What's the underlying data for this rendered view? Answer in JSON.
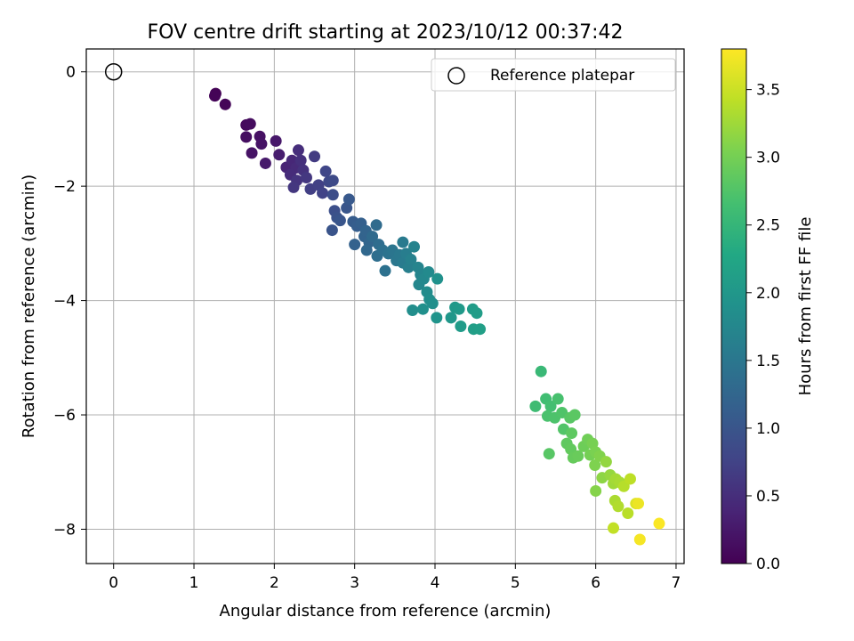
{
  "chart_data": {
    "type": "scatter",
    "title": "FOV centre drift starting at 2023/10/12 00:37:42",
    "xlabel": "Angular distance from reference (arcmin)",
    "ylabel": "Rotation from reference (arcmin)",
    "xlim": [
      -0.34,
      7.1
    ],
    "ylim": [
      -8.6,
      0.4
    ],
    "xticks": [
      "0",
      "1",
      "2",
      "3",
      "4",
      "5",
      "6",
      "7"
    ],
    "yticks": [
      "0",
      "−2",
      "−4",
      "−6",
      "−8"
    ],
    "grid": true,
    "legend": {
      "placement": "top-right",
      "entries": [
        "Reference platepar"
      ]
    },
    "colorbar": {
      "label": "Hours from first FF file",
      "colormap": "viridis",
      "range": [
        0.0,
        3.8
      ],
      "ticks": [
        "0.0",
        "0.5",
        "1.0",
        "1.5",
        "2.0",
        "2.5",
        "3.0",
        "3.5"
      ]
    },
    "reference_point": {
      "x": 0.0,
      "y": 0.0
    },
    "series": [
      {
        "values": [
          {
            "x": 1.27,
            "y": -0.38,
            "t": 0.02
          },
          {
            "x": 1.26,
            "y": -0.42,
            "t": 0.03
          },
          {
            "x": 1.39,
            "y": -0.57,
            "t": 0.05
          },
          {
            "x": 1.65,
            "y": -0.93,
            "t": 0.1
          },
          {
            "x": 1.7,
            "y": -0.91,
            "t": 0.12
          },
          {
            "x": 1.65,
            "y": -1.14,
            "t": 0.14
          },
          {
            "x": 1.82,
            "y": -1.13,
            "t": 0.17
          },
          {
            "x": 1.84,
            "y": -1.26,
            "t": 0.2
          },
          {
            "x": 1.72,
            "y": -1.42,
            "t": 0.19
          },
          {
            "x": 2.02,
            "y": -1.21,
            "t": 0.25
          },
          {
            "x": 1.89,
            "y": -1.6,
            "t": 0.27
          },
          {
            "x": 2.06,
            "y": -1.45,
            "t": 0.3
          },
          {
            "x": 2.15,
            "y": -1.67,
            "t": 0.38
          },
          {
            "x": 2.22,
            "y": -1.55,
            "t": 0.42
          },
          {
            "x": 2.27,
            "y": -1.68,
            "t": 0.46
          },
          {
            "x": 2.3,
            "y": -1.37,
            "t": 0.5
          },
          {
            "x": 2.33,
            "y": -1.55,
            "t": 0.52
          },
          {
            "x": 2.36,
            "y": -1.72,
            "t": 0.55
          },
          {
            "x": 2.2,
            "y": -1.8,
            "t": 0.48
          },
          {
            "x": 2.28,
            "y": -1.9,
            "t": 0.57
          },
          {
            "x": 2.24,
            "y": -2.02,
            "t": 0.6
          },
          {
            "x": 2.4,
            "y": -1.85,
            "t": 0.62
          },
          {
            "x": 2.5,
            "y": -1.48,
            "t": 0.65
          },
          {
            "x": 2.45,
            "y": -2.05,
            "t": 0.7
          },
          {
            "x": 2.55,
            "y": -1.98,
            "t": 0.72
          },
          {
            "x": 2.6,
            "y": -2.12,
            "t": 0.75
          },
          {
            "x": 2.64,
            "y": -1.74,
            "t": 0.8
          },
          {
            "x": 2.68,
            "y": -1.92,
            "t": 0.82
          },
          {
            "x": 2.73,
            "y": -1.9,
            "t": 0.85
          },
          {
            "x": 2.73,
            "y": -2.15,
            "t": 0.88
          },
          {
            "x": 2.75,
            "y": -2.43,
            "t": 0.92
          },
          {
            "x": 2.72,
            "y": -2.77,
            "t": 0.98
          },
          {
            "x": 2.78,
            "y": -2.55,
            "t": 0.95
          },
          {
            "x": 2.82,
            "y": -2.6,
            "t": 1.0
          },
          {
            "x": 2.9,
            "y": -2.38,
            "t": 1.02
          },
          {
            "x": 2.93,
            "y": -2.23,
            "t": 1.05
          },
          {
            "x": 2.98,
            "y": -2.62,
            "t": 1.1
          },
          {
            "x": 3.03,
            "y": -2.7,
            "t": 1.12
          },
          {
            "x": 3.08,
            "y": -2.65,
            "t": 1.15
          },
          {
            "x": 3.0,
            "y": -3.02,
            "t": 1.18
          },
          {
            "x": 3.12,
            "y": -2.88,
            "t": 1.2
          },
          {
            "x": 3.14,
            "y": -2.78,
            "t": 1.22
          },
          {
            "x": 3.18,
            "y": -2.98,
            "t": 1.25
          },
          {
            "x": 3.15,
            "y": -3.12,
            "t": 1.27
          },
          {
            "x": 3.22,
            "y": -2.88,
            "t": 1.3
          },
          {
            "x": 3.27,
            "y": -2.68,
            "t": 1.32
          },
          {
            "x": 3.3,
            "y": -3.02,
            "t": 1.35
          },
          {
            "x": 3.28,
            "y": -3.22,
            "t": 1.37
          },
          {
            "x": 3.35,
            "y": -3.12,
            "t": 1.4
          },
          {
            "x": 3.38,
            "y": -3.48,
            "t": 1.42
          },
          {
            "x": 3.42,
            "y": -3.18,
            "t": 1.45
          },
          {
            "x": 3.47,
            "y": -3.12,
            "t": 1.48
          },
          {
            "x": 3.52,
            "y": -3.3,
            "t": 1.5
          },
          {
            "x": 3.56,
            "y": -3.2,
            "t": 1.52
          },
          {
            "x": 3.6,
            "y": -2.98,
            "t": 1.55
          },
          {
            "x": 3.6,
            "y": -3.34,
            "t": 1.57
          },
          {
            "x": 3.64,
            "y": -3.18,
            "t": 1.6
          },
          {
            "x": 3.67,
            "y": -3.42,
            "t": 1.62
          },
          {
            "x": 3.7,
            "y": -3.28,
            "t": 1.65
          },
          {
            "x": 3.74,
            "y": -3.06,
            "t": 1.68
          },
          {
            "x": 3.79,
            "y": -3.42,
            "t": 1.7
          },
          {
            "x": 3.82,
            "y": -3.55,
            "t": 1.72
          },
          {
            "x": 3.8,
            "y": -3.72,
            "t": 1.75
          },
          {
            "x": 3.86,
            "y": -3.62,
            "t": 1.77
          },
          {
            "x": 3.92,
            "y": -3.5,
            "t": 1.8
          },
          {
            "x": 3.9,
            "y": -3.85,
            "t": 1.82
          },
          {
            "x": 3.93,
            "y": -3.98,
            "t": 1.85
          },
          {
            "x": 3.97,
            "y": -4.05,
            "t": 1.87
          },
          {
            "x": 4.03,
            "y": -3.62,
            "t": 1.9
          },
          {
            "x": 3.72,
            "y": -4.17,
            "t": 1.85
          },
          {
            "x": 3.85,
            "y": -4.15,
            "t": 1.88
          },
          {
            "x": 4.02,
            "y": -4.3,
            "t": 1.95
          },
          {
            "x": 4.2,
            "y": -4.3,
            "t": 2.0
          },
          {
            "x": 4.25,
            "y": -4.12,
            "t": 2.02
          },
          {
            "x": 4.3,
            "y": -4.15,
            "t": 2.04
          },
          {
            "x": 4.32,
            "y": -4.45,
            "t": 2.06
          },
          {
            "x": 4.47,
            "y": -4.15,
            "t": 2.08
          },
          {
            "x": 4.52,
            "y": -4.22,
            "t": 2.1
          },
          {
            "x": 4.48,
            "y": -4.5,
            "t": 2.12
          },
          {
            "x": 4.56,
            "y": -4.5,
            "t": 2.13
          },
          {
            "x": 5.32,
            "y": -5.24,
            "t": 2.55
          },
          {
            "x": 5.25,
            "y": -5.85,
            "t": 2.6
          },
          {
            "x": 5.38,
            "y": -5.72,
            "t": 2.62
          },
          {
            "x": 5.44,
            "y": -5.85,
            "t": 2.65
          },
          {
            "x": 5.53,
            "y": -5.72,
            "t": 2.68
          },
          {
            "x": 5.4,
            "y": -6.02,
            "t": 2.7
          },
          {
            "x": 5.49,
            "y": -6.05,
            "t": 2.72
          },
          {
            "x": 5.58,
            "y": -5.96,
            "t": 2.74
          },
          {
            "x": 5.6,
            "y": -6.25,
            "t": 2.76
          },
          {
            "x": 5.68,
            "y": -6.05,
            "t": 2.8
          },
          {
            "x": 5.74,
            "y": -6.0,
            "t": 2.82
          },
          {
            "x": 5.7,
            "y": -6.32,
            "t": 2.84
          },
          {
            "x": 5.64,
            "y": -6.5,
            "t": 2.86
          },
          {
            "x": 5.69,
            "y": -6.6,
            "t": 2.88
          },
          {
            "x": 5.72,
            "y": -6.75,
            "t": 2.9
          },
          {
            "x": 5.78,
            "y": -6.72,
            "t": 2.92
          },
          {
            "x": 5.42,
            "y": -6.68,
            "t": 2.8
          },
          {
            "x": 5.85,
            "y": -6.55,
            "t": 2.95
          },
          {
            "x": 5.9,
            "y": -6.43,
            "t": 2.97
          },
          {
            "x": 5.93,
            "y": -6.7,
            "t": 3.0
          },
          {
            "x": 5.96,
            "y": -6.5,
            "t": 3.02
          },
          {
            "x": 6.0,
            "y": -6.65,
            "t": 3.04
          },
          {
            "x": 5.99,
            "y": -6.88,
            "t": 3.06
          },
          {
            "x": 6.05,
            "y": -6.72,
            "t": 3.08
          },
          {
            "x": 6.0,
            "y": -7.33,
            "t": 3.1
          },
          {
            "x": 6.08,
            "y": -7.1,
            "t": 3.15
          },
          {
            "x": 6.13,
            "y": -6.82,
            "t": 3.18
          },
          {
            "x": 6.18,
            "y": -7.05,
            "t": 3.2
          },
          {
            "x": 6.22,
            "y": -7.2,
            "t": 3.25
          },
          {
            "x": 6.25,
            "y": -7.12,
            "t": 3.28
          },
          {
            "x": 6.3,
            "y": -7.18,
            "t": 3.3
          },
          {
            "x": 6.24,
            "y": -7.5,
            "t": 3.32
          },
          {
            "x": 6.28,
            "y": -7.6,
            "t": 3.35
          },
          {
            "x": 6.35,
            "y": -7.25,
            "t": 3.38
          },
          {
            "x": 6.4,
            "y": -7.72,
            "t": 3.4
          },
          {
            "x": 6.43,
            "y": -7.12,
            "t": 3.42
          },
          {
            "x": 6.22,
            "y": -7.98,
            "t": 3.45
          },
          {
            "x": 6.5,
            "y": -7.55,
            "t": 3.6
          },
          {
            "x": 6.53,
            "y": -7.55,
            "t": 3.7
          },
          {
            "x": 6.55,
            "y": -8.18,
            "t": 3.75
          },
          {
            "x": 6.79,
            "y": -7.9,
            "t": 3.78
          }
        ]
      }
    ]
  }
}
